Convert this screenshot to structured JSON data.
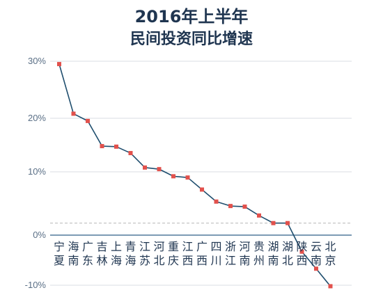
{
  "chart_data": {
    "type": "line",
    "title": "2016年上半年",
    "subtitle": "民间投资同比增速",
    "xlabel": "",
    "ylabel": "",
    "ylim": [
      -10,
      30
    ],
    "yticks": [
      "30%",
      "20%",
      "10%",
      "0%",
      "-10%"
    ],
    "grid": true,
    "categories": [
      [
        "宁",
        "夏"
      ],
      [
        "海",
        "南"
      ],
      [
        "广",
        "东"
      ],
      [
        "吉",
        "林"
      ],
      [
        "上",
        "海"
      ],
      [
        "青",
        "海"
      ],
      [
        "江",
        "苏"
      ],
      [
        "河",
        "北"
      ],
      [
        "重",
        "庆"
      ],
      [
        "江",
        "西"
      ],
      [
        "广",
        "西"
      ],
      [
        "四",
        "川"
      ],
      [
        "浙",
        "江"
      ],
      [
        "河",
        "南"
      ],
      [
        "贵",
        "州"
      ],
      [
        "湖",
        "南"
      ],
      [
        "湖",
        "北"
      ],
      [
        "陕",
        "西"
      ],
      [
        "云",
        "南"
      ],
      [
        "北",
        "京"
      ]
    ],
    "values": [
      29.5,
      20.8,
      19.5,
      14.8,
      14.7,
      13.5,
      10.8,
      10.5,
      9.3,
      9.1,
      7.2,
      5.3,
      4.6,
      4.5,
      3.1,
      1.9,
      1.9,
      -3.3,
      -6.7,
      -10.2
    ],
    "reference_line": 1.9,
    "colors": {
      "line": "#1f4e6e",
      "marker": "#e2514c",
      "grid": "#d9dee3",
      "axis": "#2d5f86",
      "reference": "#b5b5b5",
      "text": "#1f3550",
      "tick": "#5a6f86"
    }
  }
}
